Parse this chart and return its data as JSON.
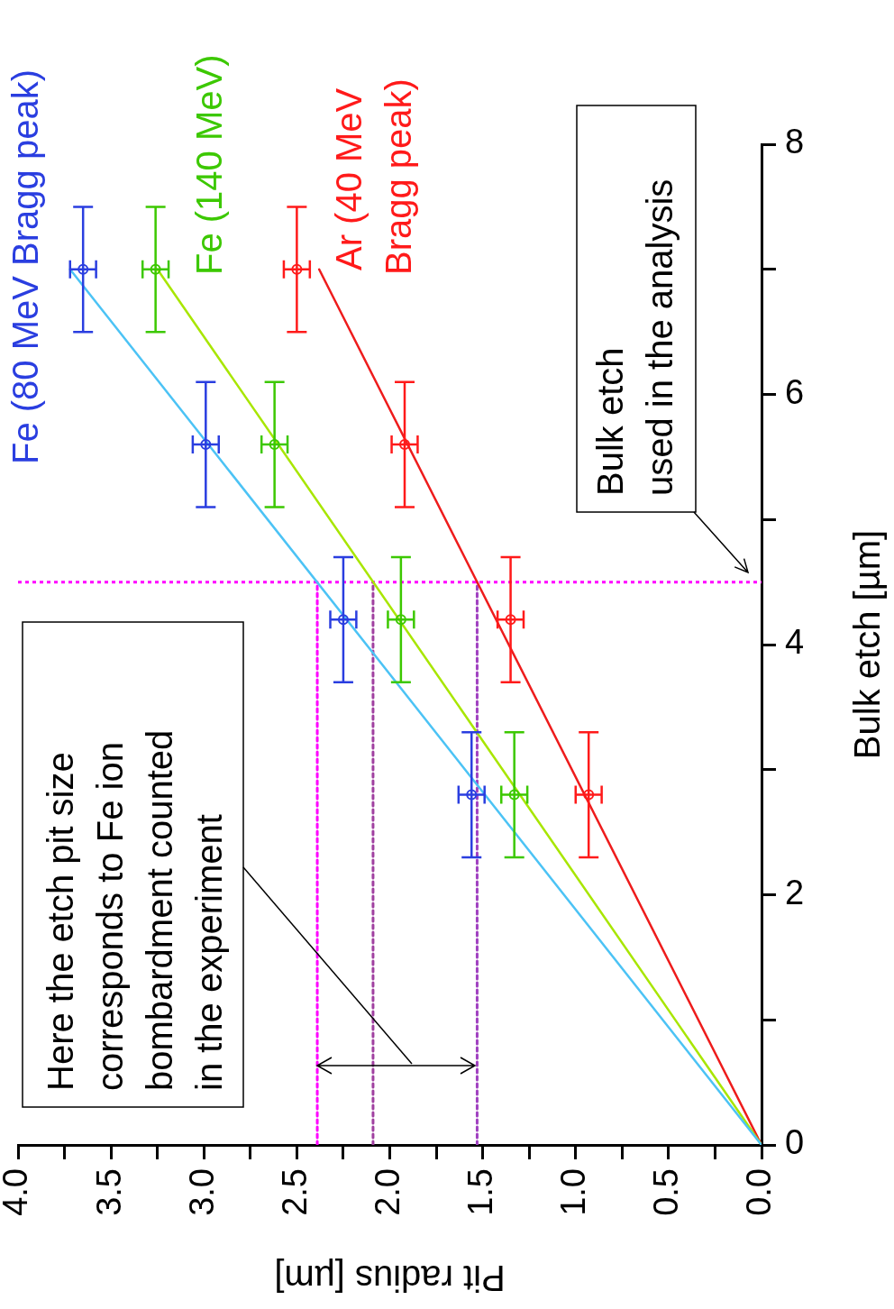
{
  "chart_data": {
    "type": "scatter",
    "xlabel": "Pit radius [µm]",
    "ylabel": "Bulk etch [µm]",
    "xlim": [
      4.0,
      0
    ],
    "ylim": [
      0,
      8
    ],
    "yticks": [
      0,
      {
        "value": 1,
        "label": null
      },
      2,
      {
        "value": 3,
        "label": null
      },
      4,
      {
        "value": 5,
        "label": null
      },
      6,
      {
        "value": 7,
        "label": null
      },
      8
    ],
    "xticks": [
      {
        "value": 0,
        "label": "0.0"
      },
      {
        "value": 0.25,
        "label": null
      },
      {
        "value": 0.5,
        "label": "0.5"
      },
      {
        "value": 0.75,
        "label": null
      },
      {
        "value": 1,
        "label": "1.0"
      },
      {
        "value": 1.25,
        "label": null
      },
      {
        "value": 1.5,
        "label": "1.5"
      },
      {
        "value": 1.75,
        "label": null
      },
      {
        "value": 2,
        "label": "2.0"
      },
      {
        "value": 2.25,
        "label": null
      },
      {
        "value": 2.5,
        "label": "2.5"
      },
      {
        "value": 2.75,
        "label": null
      },
      {
        "value": 3,
        "label": "3.0"
      },
      {
        "value": 3.25,
        "label": null
      },
      {
        "value": 3.5,
        "label": "3.5"
      },
      {
        "value": 3.75,
        "label": null
      },
      {
        "value": 4,
        "label": "4.0"
      }
    ],
    "grid": false,
    "legend": false,
    "marker": "circle",
    "series": [
      {
        "type": "line",
        "color": "#4cc3f5",
        "x": [
          0,
          3.72
        ],
        "values": [
          0,
          7
        ],
        "marker": "none"
      },
      {
        "type": "line",
        "color": "#a8e600",
        "x": [
          0,
          3.25
        ],
        "values": [
          0,
          7
        ],
        "marker": "none"
      },
      {
        "type": "line",
        "color": "#ee1c1c",
        "x": [
          0,
          2.38
        ],
        "values": [
          0,
          7
        ],
        "marker": "none"
      },
      {
        "type": "line",
        "color": "#ff00ff",
        "x": [
          2.39,
          2.39
        ],
        "values": [
          0,
          4.5
        ],
        "marker": "none",
        "line_style": "dotted"
      },
      {
        "type": "line",
        "color": "#a040a0",
        "x": [
          2.09,
          2.09
        ],
        "values": [
          0,
          4.5
        ],
        "marker": "none",
        "line_style": "dotted"
      },
      {
        "type": "line",
        "color": "#a040c0",
        "x": [
          1.53,
          1.53
        ],
        "values": [
          0,
          4.5
        ],
        "marker": "none",
        "line_style": "dotted"
      },
      {
        "type": "scatter",
        "name": "Fe (80 MeV Bragg peak)",
        "color": "#2a3ee0",
        "x": [
          1.56,
          2.25,
          2.99,
          3.65
        ],
        "values": [
          2.8,
          4.2,
          5.6,
          7.0
        ],
        "errors": [
          0.5,
          0.5,
          0.5,
          0.5
        ],
        "xerrors": [
          0.07,
          0.07,
          0.07,
          0.07
        ]
      },
      {
        "type": "scatter",
        "name": "Fe (140 MeV)",
        "color": "#3cc800",
        "x": [
          1.33,
          1.94,
          2.62,
          3.26
        ],
        "values": [
          2.8,
          4.2,
          5.6,
          7.0
        ],
        "errors": [
          0.5,
          0.5,
          0.5,
          0.5
        ],
        "xerrors": [
          0.07,
          0.07,
          0.07,
          0.07
        ]
      },
      {
        "type": "scatter",
        "name": "Ar (40 MeV\nBragg peak)",
        "color": "#ff1a1a",
        "x": [
          0.93,
          1.35,
          1.92,
          2.5
        ],
        "values": [
          2.8,
          4.2,
          5.6,
          7.0
        ],
        "errors": [
          0.5,
          0.5,
          0.5,
          0.5
        ],
        "xerrors": [
          0.07,
          0.07,
          0.07,
          0.07
        ]
      }
    ],
    "ref_lines": [
      {
        "axis": "y",
        "value": 4.5,
        "color": "#ff00ff",
        "line_style": "dotted"
      }
    ],
    "annotations": [
      "Bulk etch\nused in the analysis",
      "Here the etch pit size\ncorresponds to Fe ion\nbombardment counted\nin the experiment"
    ]
  }
}
